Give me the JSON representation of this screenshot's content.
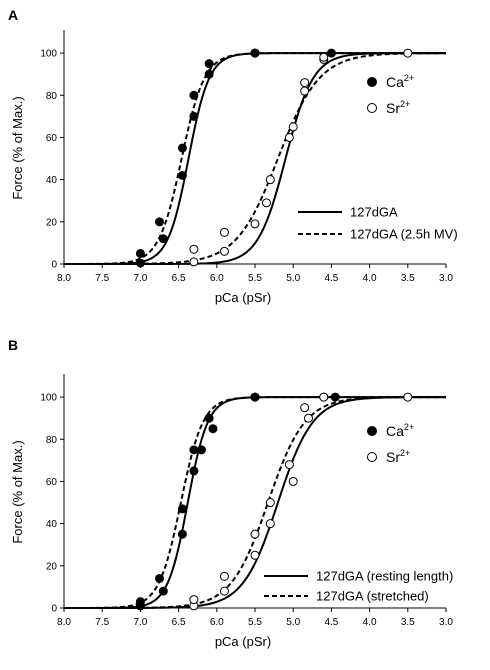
{
  "chart_data": [
    {
      "type": "scatter",
      "panel_label": "A",
      "xlabel": "pCa (pSr)",
      "ylabel": "Force (% of Max.)",
      "xlim": [
        8.0,
        3.0
      ],
      "x_reversed": true,
      "ylim": [
        0,
        110
      ],
      "xticks": [
        "8.0",
        "7.5",
        "7.0",
        "6.5",
        "6.0",
        "5.5",
        "5.0",
        "4.5",
        "4.0",
        "3.5",
        "3.0"
      ],
      "yticks": [
        "0",
        "20",
        "40",
        "60",
        "80",
        "100"
      ],
      "grid": false,
      "marker_legend": [
        {
          "ion": "Ca",
          "sup": "2+",
          "symbol": "filled-circle"
        },
        {
          "ion": "Sr",
          "sup": "2+",
          "symbol": "open-circle"
        }
      ],
      "line_legend": [
        {
          "label": "127dGA",
          "style": "solid"
        },
        {
          "label": "127dGA (2.5h MV)",
          "style": "dashed"
        }
      ],
      "series": [
        {
          "ion": "Ca",
          "condition": "127dGA",
          "marker": "filled-circle",
          "line": "solid",
          "points": [
            [
              7.0,
              0.5
            ],
            [
              6.7,
              12
            ],
            [
              6.45,
              42
            ],
            [
              6.3,
              70
            ],
            [
              6.1,
              90
            ],
            [
              5.5,
              100
            ],
            [
              4.5,
              100
            ]
          ],
          "fit": {
            "pc50": 6.37,
            "n": 3.2
          }
        },
        {
          "ion": "Ca",
          "condition": "127dGA (2.5h MV)",
          "marker": "filled-circle",
          "line": "dashed",
          "points": [
            [
              7.0,
              5
            ],
            [
              6.75,
              20
            ],
            [
              6.45,
              55
            ],
            [
              6.3,
              80
            ],
            [
              6.1,
              95
            ],
            [
              5.5,
              100
            ]
          ],
          "fit": {
            "pc50": 6.46,
            "n": 2.9
          }
        },
        {
          "ion": "Sr",
          "condition": "127dGA",
          "marker": "open-circle",
          "line": "solid",
          "points": [
            [
              6.3,
              1
            ],
            [
              5.9,
              6
            ],
            [
              5.5,
              19
            ],
            [
              5.35,
              29
            ],
            [
              5.05,
              60
            ],
            [
              4.85,
              82
            ],
            [
              4.6,
              97
            ],
            [
              3.5,
              100
            ]
          ],
          "fit": {
            "pc50": 5.1,
            "n": 2.4
          }
        },
        {
          "ion": "Sr",
          "condition": "127dGA (2.5h MV)",
          "marker": "open-circle",
          "line": "dashed",
          "points": [
            [
              6.3,
              7
            ],
            [
              5.9,
              15
            ],
            [
              5.3,
              40
            ],
            [
              5.0,
              65
            ],
            [
              4.85,
              86
            ],
            [
              4.6,
              98
            ]
          ],
          "fit": {
            "pc50": 5.2,
            "n": 1.6
          }
        }
      ]
    },
    {
      "type": "scatter",
      "panel_label": "B",
      "xlabel": "pCa (pSr)",
      "ylabel": "Force (% of Max.)",
      "xlim": [
        8.0,
        3.0
      ],
      "x_reversed": true,
      "ylim": [
        0,
        110
      ],
      "xticks": [
        "8.0",
        "7.5",
        "7.0",
        "6.5",
        "6.0",
        "5.5",
        "5.0",
        "4.5",
        "4.0",
        "3.5",
        "3.0"
      ],
      "yticks": [
        "0",
        "20",
        "40",
        "60",
        "80",
        "100"
      ],
      "grid": false,
      "marker_legend": [
        {
          "ion": "Ca",
          "sup": "2+",
          "symbol": "filled-circle"
        },
        {
          "ion": "Sr",
          "sup": "2+",
          "symbol": "open-circle"
        }
      ],
      "line_legend": [
        {
          "label": "127dGA (resting length)",
          "style": "solid"
        },
        {
          "label": "127dGA (stretched)",
          "style": "dashed"
        }
      ],
      "series": [
        {
          "ion": "Ca",
          "condition": "127dGA (resting length)",
          "marker": "filled-circle",
          "line": "solid",
          "points": [
            [
              7.0,
              1
            ],
            [
              6.7,
              8
            ],
            [
              6.45,
              35
            ],
            [
              6.3,
              65
            ],
            [
              6.2,
              75
            ],
            [
              6.05,
              85
            ],
            [
              5.5,
              100
            ],
            [
              4.45,
              100
            ]
          ],
          "fit": {
            "pc50": 6.38,
            "n": 3.3
          }
        },
        {
          "ion": "Ca",
          "condition": "127dGA (stretched)",
          "marker": "filled-circle",
          "line": "dashed",
          "points": [
            [
              7.0,
              3
            ],
            [
              6.75,
              14
            ],
            [
              6.45,
              47
            ],
            [
              6.3,
              75
            ],
            [
              6.1,
              90
            ],
            [
              5.5,
              100
            ]
          ],
          "fit": {
            "pc50": 6.47,
            "n": 3.0
          }
        },
        {
          "ion": "Sr",
          "condition": "127dGA (resting length)",
          "marker": "open-circle",
          "line": "solid",
          "points": [
            [
              6.3,
              1
            ],
            [
              5.9,
              8
            ],
            [
              5.5,
              25
            ],
            [
              5.3,
              40
            ],
            [
              5.0,
              60
            ],
            [
              4.8,
              90
            ],
            [
              4.6,
              100
            ],
            [
              3.5,
              100
            ]
          ],
          "fit": {
            "pc50": 5.2,
            "n": 1.9
          }
        },
        {
          "ion": "Sr",
          "condition": "127dGA (stretched)",
          "marker": "open-circle",
          "line": "dashed",
          "points": [
            [
              6.3,
              4
            ],
            [
              5.9,
              15
            ],
            [
              5.5,
              35
            ],
            [
              5.3,
              50
            ],
            [
              5.05,
              68
            ],
            [
              4.85,
              95
            ],
            [
              4.6,
              100
            ]
          ],
          "fit": {
            "pc50": 5.33,
            "n": 1.8
          }
        }
      ]
    }
  ]
}
